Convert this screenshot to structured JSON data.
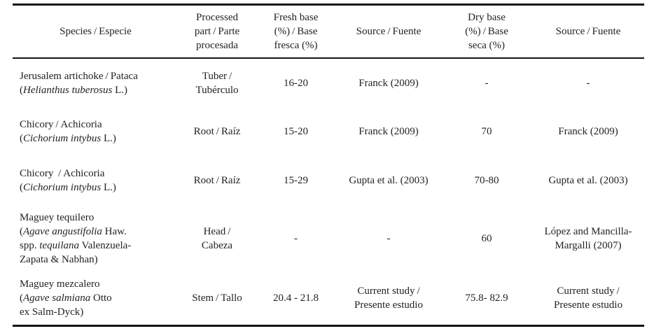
{
  "table": {
    "headers": [
      {
        "id": "species",
        "label": "Species / Especie"
      },
      {
        "id": "part",
        "label": "Processed\npart / Parte\nprocesada"
      },
      {
        "id": "fresh",
        "label": "Fresh base\n(%) / Base\nfresca (%)"
      },
      {
        "id": "source_fresh",
        "label": "Source / Fuente"
      },
      {
        "id": "dry",
        "label": "Dry base\n(%) / Base\nseca (%)"
      },
      {
        "id": "source_dry",
        "label": "Source / Fuente"
      }
    ],
    "rows": [
      {
        "species": [
          [
            {
              "t": "Jerusalem artichoke / Pataca",
              "i": false
            }
          ],
          [
            {
              "t": "(",
              "i": false
            },
            {
              "t": "Helianthus tuberosus",
              "i": true
            },
            {
              "t": " L.)",
              "i": false
            }
          ]
        ],
        "part": "Tuber /\nTubérculo",
        "fresh": "16-20",
        "source_fresh": "Franck (2009)",
        "dry": "-",
        "source_dry": "-"
      },
      {
        "species": [
          [
            {
              "t": "Chicory / Achicoria",
              "i": false
            }
          ],
          [
            {
              "t": "(",
              "i": false
            },
            {
              "t": "Cichorium intybus",
              "i": true
            },
            {
              "t": " L.)",
              "i": false
            }
          ]
        ],
        "part": "Root / Raíz",
        "fresh": "15-20",
        "source_fresh": "Franck (2009)",
        "dry": "70",
        "source_dry": "Franck (2009)"
      },
      {
        "species": [
          [
            {
              "t": "Chicory  / Achicoria",
              "i": false
            }
          ],
          [
            {
              "t": "(",
              "i": false
            },
            {
              "t": "Cichorium intybus",
              "i": true
            },
            {
              "t": " L.)",
              "i": false
            }
          ]
        ],
        "part": "Root / Raíz",
        "fresh": "15-29",
        "source_fresh": "Gupta et al. (2003)",
        "dry": "70-80",
        "source_dry": "Gupta et al. (2003)"
      },
      {
        "species": [
          [
            {
              "t": "Maguey tequilero",
              "i": false
            }
          ],
          [
            {
              "t": "(",
              "i": false
            },
            {
              "t": "Agave angustifolia",
              "i": true
            },
            {
              "t": " Haw.",
              "i": false
            }
          ],
          [
            {
              "t": "spp. ",
              "i": false
            },
            {
              "t": "tequilana",
              "i": true
            },
            {
              "t": " Valenzuela-",
              "i": false
            }
          ],
          [
            {
              "t": "Zapata & Nabhan)",
              "i": false
            }
          ]
        ],
        "part": "Head /\nCabeza",
        "fresh": "-",
        "source_fresh": "-",
        "dry": "60",
        "source_dry": "López and Mancilla-\nMargalli (2007)"
      },
      {
        "species": [
          [
            {
              "t": "Maguey mezcalero",
              "i": false
            }
          ],
          [
            {
              "t": "(",
              "i": false
            },
            {
              "t": "Agave salmiana",
              "i": true
            },
            {
              "t": " Otto",
              "i": false
            }
          ],
          [
            {
              "t": "ex Salm-Dyck)",
              "i": false
            }
          ]
        ],
        "part": "Stem / Tallo",
        "fresh": "20.4 - 21.8",
        "source_fresh": "Current study /\nPresente estudio",
        "dry": "75.8- 82.9",
        "source_dry": "Current study /\nPresente estudio"
      }
    ]
  },
  "colors": {
    "text": "#231f20",
    "rule": "#161412",
    "background": "#ffffff"
  }
}
